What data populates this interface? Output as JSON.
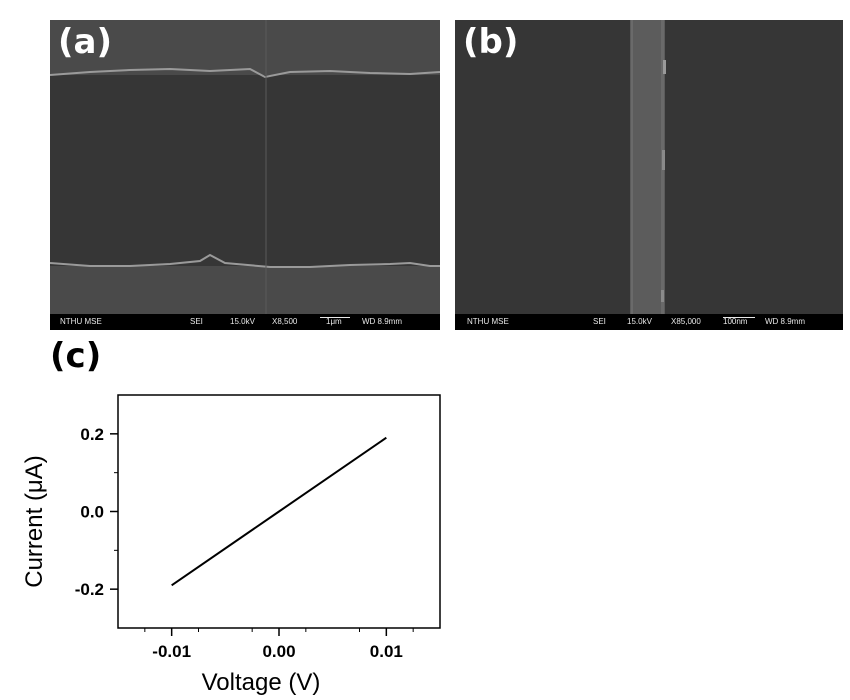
{
  "panels": {
    "a": {
      "label": "(a)",
      "info": {
        "institution": "NTHU MSE",
        "detector": "SEI",
        "voltage": "15.0kV",
        "magnification": "X8,500",
        "scale": "1μm",
        "working_distance": "WD 8.9mm"
      }
    },
    "b": {
      "label": "(b)",
      "info": {
        "institution": "NTHU MSE",
        "detector": "SEI",
        "voltage": "15.0kV",
        "magnification": "X85,000",
        "scale": "100nm",
        "working_distance": "WD 8.9mm"
      }
    },
    "c": {
      "label": "(c)"
    }
  },
  "chart_data": {
    "type": "line",
    "xlabel": "Voltage (V)",
    "ylabel": "Current (μA)",
    "xlim": [
      -0.015,
      0.015
    ],
    "ylim": [
      -0.3,
      0.3
    ],
    "x_ticks": [
      -0.01,
      0.0,
      0.01
    ],
    "x_tick_labels": [
      "-0.01",
      "0.00",
      "0.01"
    ],
    "y_ticks": [
      -0.2,
      0.0,
      0.2
    ],
    "y_tick_labels": [
      "-0.2",
      "0.0",
      "0.2"
    ],
    "grid": false,
    "series": [
      {
        "x": [
          -0.01,
          0.0,
          0.01
        ],
        "y": [
          -0.19,
          0.0,
          0.19
        ]
      }
    ]
  }
}
